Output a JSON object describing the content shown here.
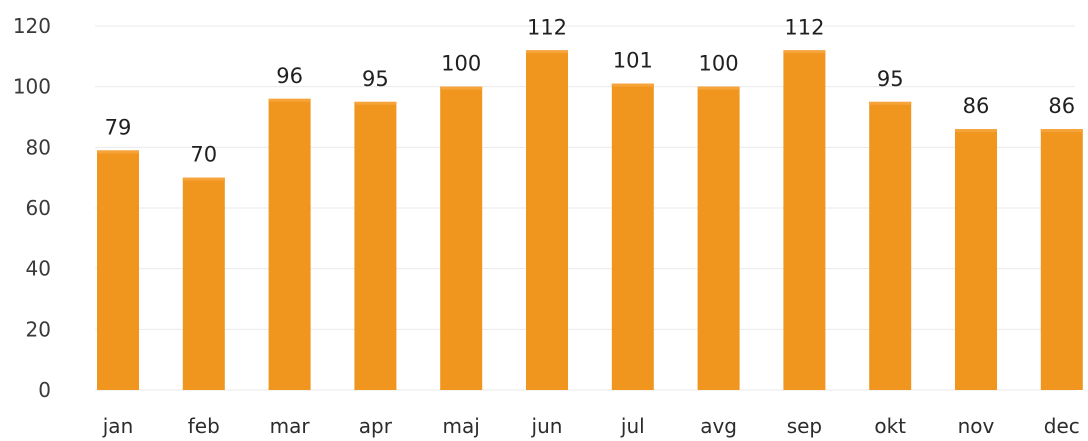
{
  "chart_data": {
    "type": "bar",
    "categories": [
      "jan",
      "feb",
      "mar",
      "apr",
      "maj",
      "jun",
      "jul",
      "avg",
      "sep",
      "okt",
      "nov",
      "dec"
    ],
    "values": [
      79,
      70,
      96,
      95,
      100,
      112,
      101,
      100,
      112,
      95,
      86,
      86
    ],
    "ylim": [
      0,
      120
    ],
    "yticks": [
      0,
      20,
      40,
      60,
      80,
      100,
      120
    ],
    "grid": true,
    "data_labels": true,
    "bar_color": "#F0961E"
  }
}
